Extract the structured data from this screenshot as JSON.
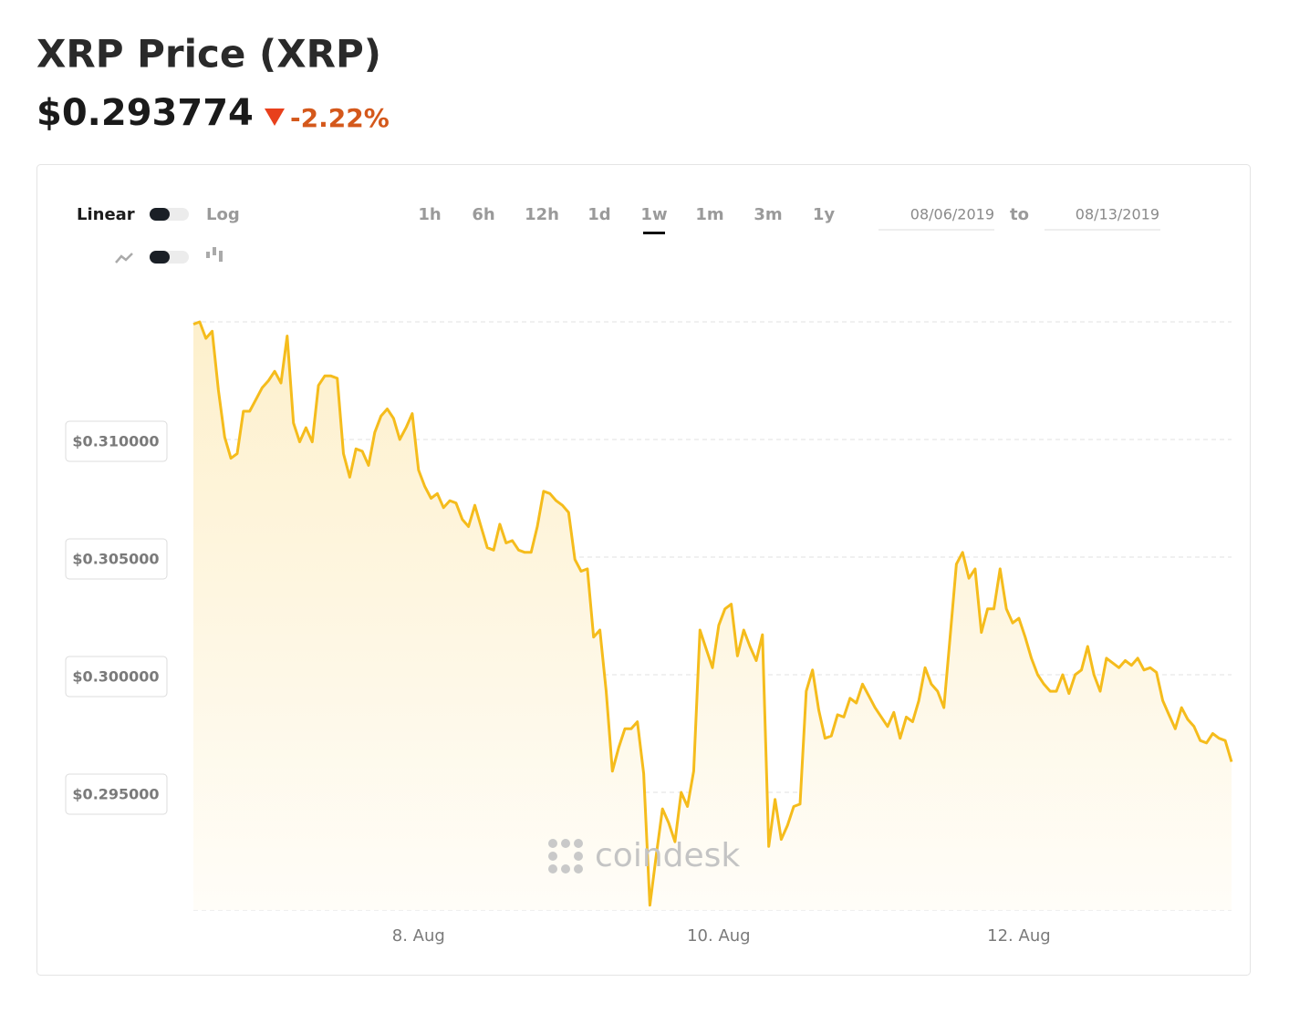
{
  "header": {
    "title": "XRP Price (XRP)",
    "price": "$0.293774",
    "change": "-2.22%"
  },
  "controls": {
    "scale": [
      "Linear",
      "Log"
    ],
    "ranges": [
      "1h",
      "6h",
      "12h",
      "1d",
      "1w",
      "1m",
      "3m",
      "1y"
    ],
    "selected_range": "1w",
    "date_from": "08/06/2019",
    "date_sep": "to",
    "date_to": "08/13/2019"
  },
  "watermark": "coindesk",
  "chart_data": {
    "type": "line",
    "color": "#f5bc1c",
    "grid": true,
    "x": [
      12,
      13,
      14,
      15,
      16,
      17,
      18,
      19,
      20,
      21,
      22,
      23,
      24,
      25,
      26,
      27,
      28,
      29,
      30,
      31,
      32,
      33,
      34,
      35,
      36,
      37,
      38,
      39,
      40,
      41,
      42,
      43,
      44,
      45,
      46,
      47,
      48,
      49,
      50,
      51,
      52,
      53,
      54,
      55,
      56,
      57,
      58,
      59,
      60,
      61,
      62,
      63,
      64,
      65,
      66,
      67,
      68,
      69,
      70,
      71,
      72,
      73,
      74,
      75,
      76,
      77,
      78,
      79,
      80,
      81,
      82,
      83,
      84,
      85,
      86,
      87,
      88,
      89,
      90,
      91,
      92,
      93,
      94,
      95,
      96,
      97,
      98,
      99,
      100,
      101,
      102,
      103,
      104,
      105,
      106,
      107,
      108,
      109,
      110,
      111,
      112,
      113,
      114,
      115,
      116,
      117,
      118,
      119,
      120,
      121,
      122,
      123,
      124,
      125,
      126,
      127,
      128,
      129,
      130,
      131,
      132,
      133,
      134,
      135,
      136,
      137,
      138,
      139,
      140,
      141,
      142,
      143,
      144,
      145,
      146,
      147,
      148,
      149,
      150,
      151,
      152,
      153,
      154,
      155,
      156,
      157,
      158,
      159,
      160,
      161,
      162,
      163,
      164,
      165,
      166,
      167,
      168,
      169,
      170,
      171,
      172,
      173,
      174,
      175,
      176,
      177,
      178
    ],
    "values": [
      0.3149,
      0.315,
      0.3143,
      0.3146,
      0.3121,
      0.3101,
      0.3092,
      0.3094,
      0.3112,
      0.3112,
      0.3117,
      0.3122,
      0.3125,
      0.3129,
      0.3124,
      0.3144,
      0.3107,
      0.3099,
      0.3105,
      0.3099,
      0.3123,
      0.3127,
      0.3127,
      0.3126,
      0.3094,
      0.3084,
      0.3096,
      0.3095,
      0.3089,
      0.3103,
      0.311,
      0.3113,
      0.3109,
      0.31,
      0.3105,
      0.3111,
      0.3087,
      0.308,
      0.3075,
      0.3077,
      0.3071,
      0.3074,
      0.3073,
      0.3066,
      0.3063,
      0.3072,
      0.3063,
      0.3054,
      0.3053,
      0.3064,
      0.3056,
      0.3057,
      0.3053,
      0.3052,
      0.3052,
      0.3063,
      0.3078,
      0.3077,
      0.3074,
      0.3072,
      0.3069,
      0.3049,
      0.3044,
      0.3045,
      0.3016,
      0.3019,
      0.2993,
      0.2959,
      0.2969,
      0.2977,
      0.2977,
      0.298,
      0.2958,
      0.2902,
      0.2923,
      0.2943,
      0.2937,
      0.2929,
      0.295,
      0.2944,
      0.2959,
      0.3019,
      0.3011,
      0.3003,
      0.3021,
      0.3028,
      0.303,
      0.3008,
      0.3019,
      0.3012,
      0.3006,
      0.3017,
      0.2927,
      0.2947,
      0.293,
      0.2936,
      0.2944,
      0.2945,
      0.2993,
      0.3002,
      0.2985,
      0.2973,
      0.2974,
      0.2983,
      0.2982,
      0.299,
      0.2988,
      0.2996,
      0.2991,
      0.2986,
      0.2982,
      0.2978,
      0.2984,
      0.2973,
      0.2982,
      0.298,
      0.2989,
      0.3003,
      0.2996,
      0.2993,
      0.2986,
      0.3016,
      0.3047,
      0.3052,
      0.3041,
      0.3045,
      0.3018,
      0.3028,
      0.3028,
      0.3045,
      0.3028,
      0.3022,
      0.3024,
      0.3016,
      0.3007,
      0.3,
      0.2996,
      0.2993,
      0.2993,
      0.3,
      0.2992,
      0.3,
      0.3002,
      0.3012,
      0.3,
      0.2993,
      0.3007,
      0.3005,
      0.3003,
      0.3006,
      0.3004,
      0.3007,
      0.3002,
      0.3003,
      0.3001,
      0.2989,
      0.2983,
      0.2977,
      0.2986,
      0.2981,
      0.2978,
      0.2972,
      0.2971,
      0.2975,
      0.2973,
      0.2972,
      0.2963
    ],
    "xlim": [
      12,
      178
    ],
    "xticks": [
      {
        "value": 48,
        "label": "8. Aug"
      },
      {
        "value": 96,
        "label": "10. Aug"
      },
      {
        "value": 144,
        "label": "12. Aug"
      }
    ],
    "ylim": [
      0.29,
      0.315
    ],
    "yticks": [
      {
        "value": 0.295,
        "label": "$0.295000"
      },
      {
        "value": 0.3,
        "label": "$0.300000"
      },
      {
        "value": 0.305,
        "label": "$0.305000"
      },
      {
        "value": 0.31,
        "label": "$0.310000"
      }
    ]
  }
}
